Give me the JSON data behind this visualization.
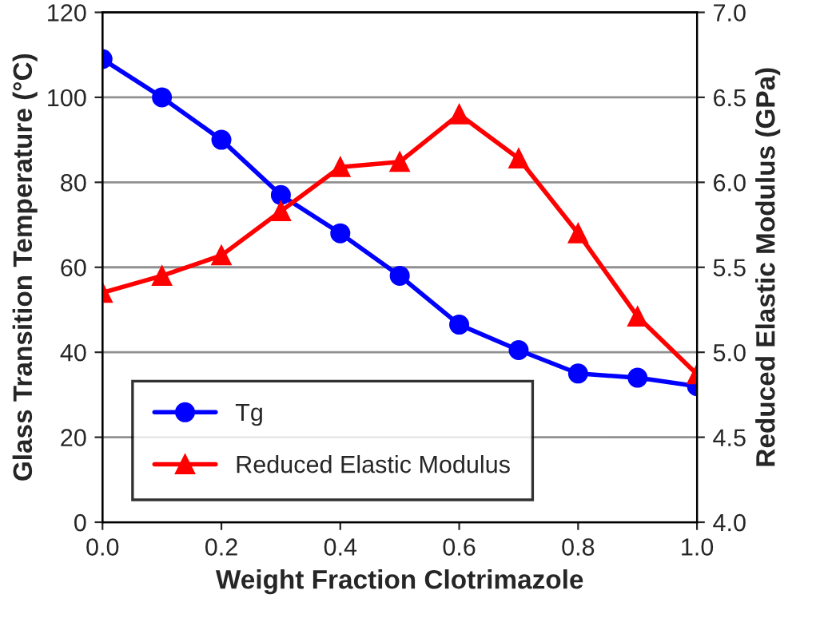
{
  "chart_data": {
    "type": "line",
    "xlabel": "Weight Fraction Clotrimazole",
    "ylabel": "Glass Transition Temperature (°C)",
    "y2label": "Reduced Elastic Modulus (GPa)",
    "x": [
      0.0,
      0.1,
      0.2,
      0.3,
      0.4,
      0.5,
      0.6,
      0.7,
      0.8,
      0.9,
      1.0
    ],
    "series": [
      {
        "name": "Tg",
        "color": "#0000ff",
        "marker": "circle",
        "values": [
          109,
          100,
          90,
          77,
          68,
          58,
          46.5,
          40.5,
          35,
          34,
          32
        ]
      },
      {
        "name": "Reduced Elastic Modulus",
        "color": "#ff0000",
        "marker": "triangle",
        "axis": "y2",
        "values": [
          5.35,
          5.45,
          5.57,
          5.83,
          6.09,
          6.12,
          6.4,
          6.14,
          5.7,
          5.21,
          4.87
        ]
      }
    ],
    "xlim": [
      0,
      1
    ],
    "xticks": [
      {
        "value": 0,
        "label": "0.0"
      },
      {
        "value": 0.2,
        "label": "0.2"
      },
      {
        "value": 0.4,
        "label": "0.4"
      },
      {
        "value": 0.6,
        "label": "0.6"
      },
      {
        "value": 0.8,
        "label": "0.8"
      },
      {
        "value": 1.0,
        "label": "1.0"
      }
    ],
    "ylim": [
      0,
      120
    ],
    "yticks": [
      0,
      20,
      40,
      60,
      80,
      100,
      120
    ],
    "y2lim": [
      4,
      7
    ],
    "y2ticks": [
      {
        "value": 4,
        "label": "4.0"
      },
      {
        "value": 4.5,
        "label": "4.5"
      },
      {
        "value": 5,
        "label": "5.0"
      },
      {
        "value": 5.5,
        "label": "5.5"
      },
      {
        "value": 6,
        "label": "6.0"
      },
      {
        "value": 6.5,
        "label": "6.5"
      },
      {
        "value": 7,
        "label": "7.0"
      }
    ],
    "grid": "y",
    "legend": "bottom left",
    "line_style": "solid"
  }
}
